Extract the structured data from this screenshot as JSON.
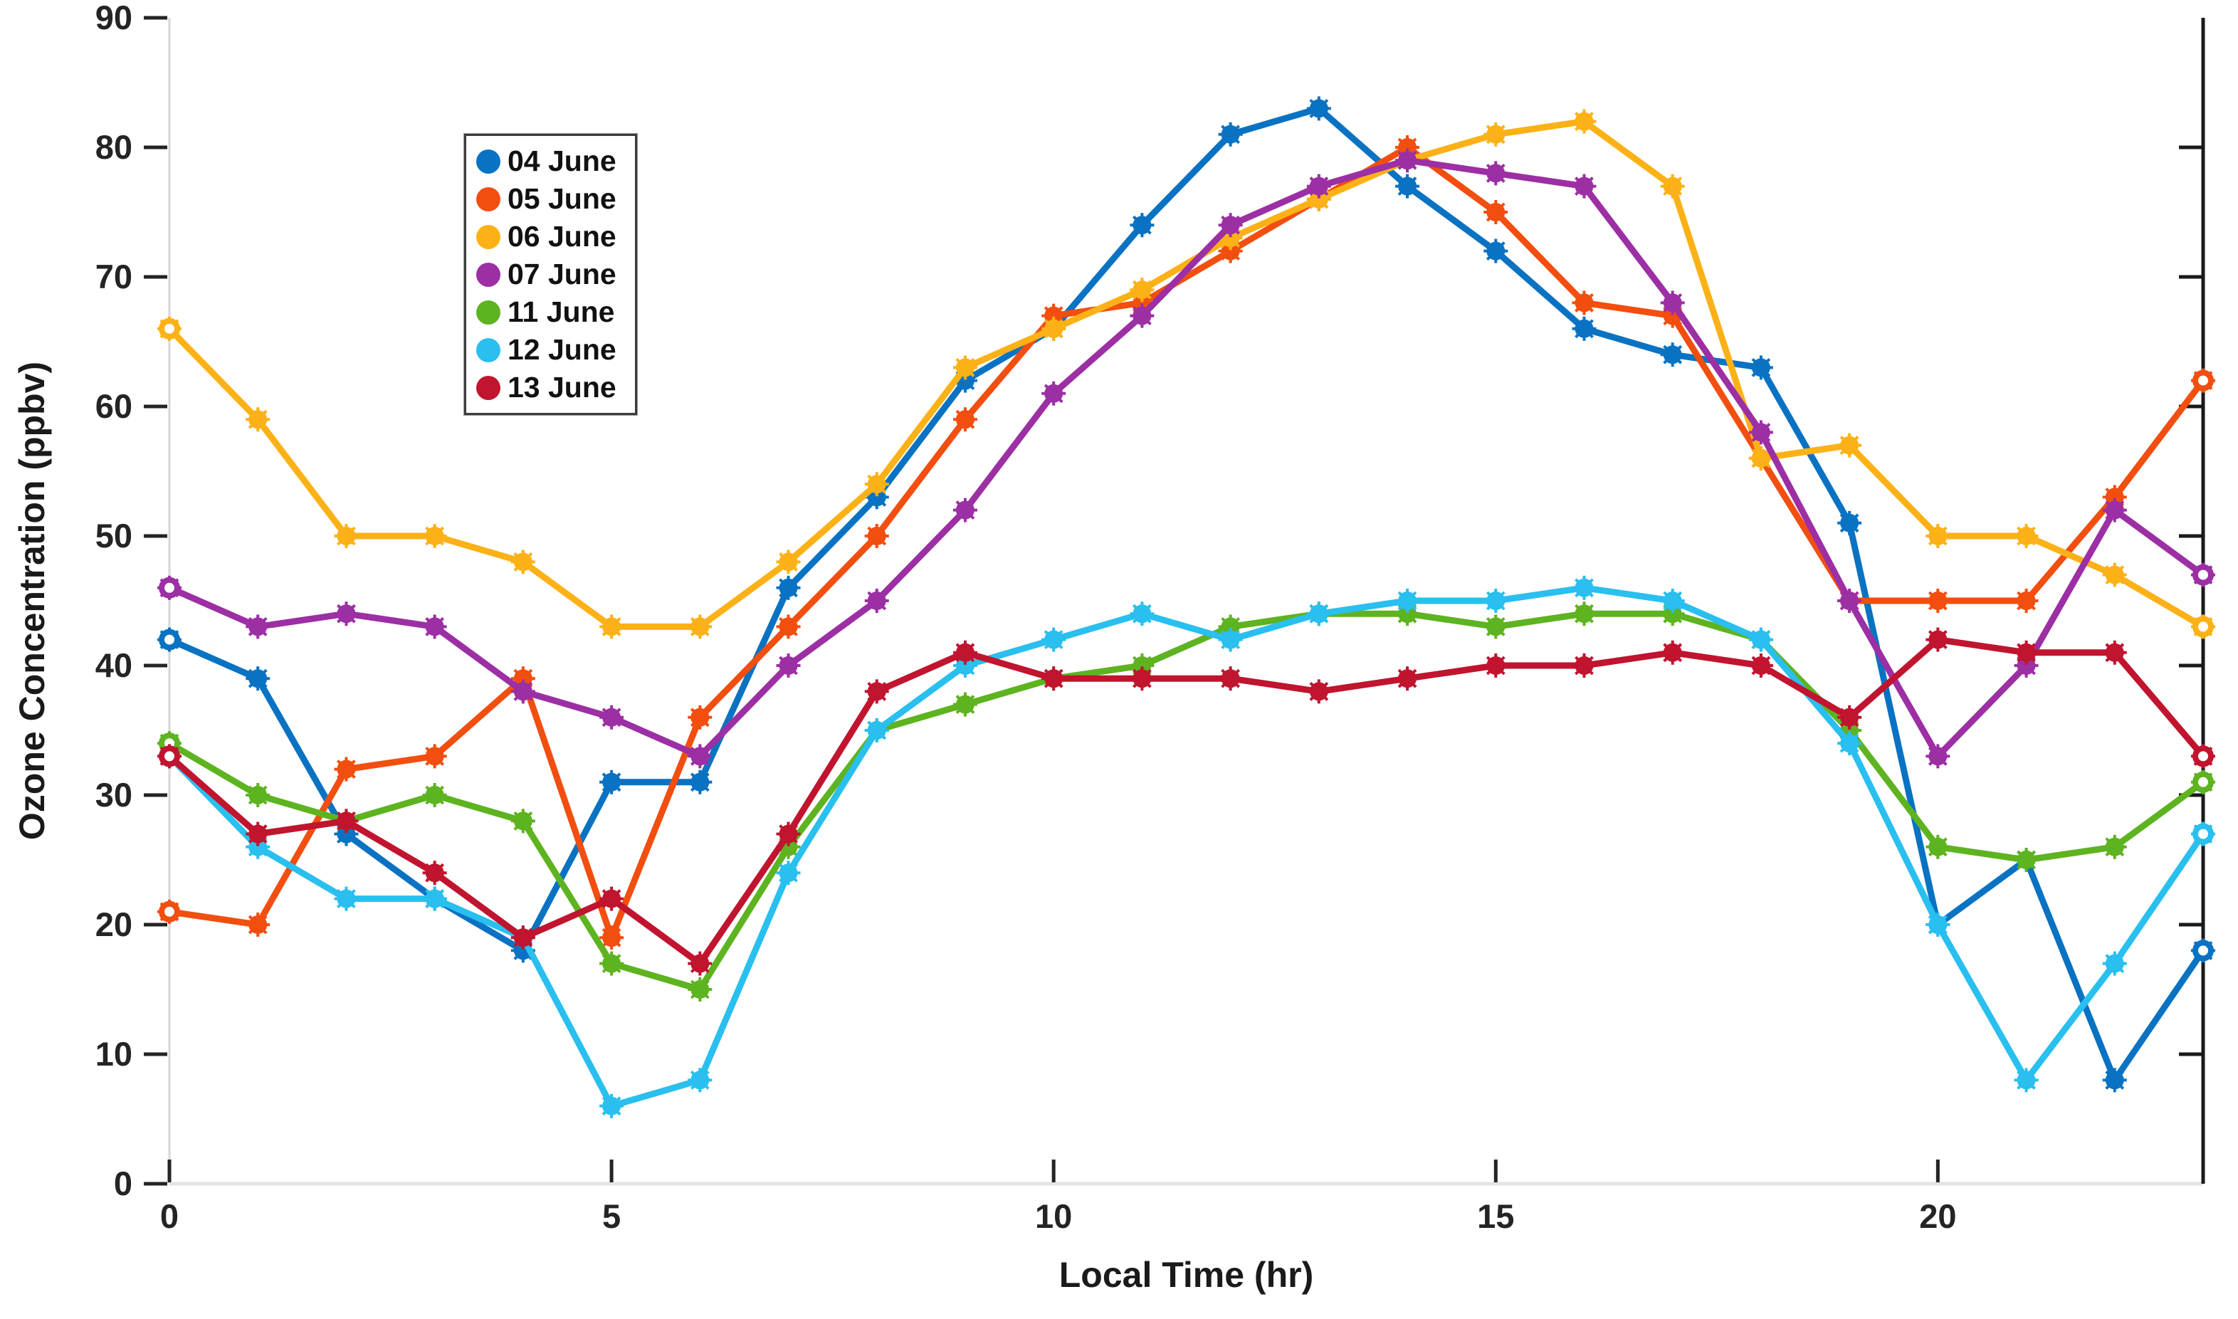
{
  "figure": {
    "xlabel": "Local Time (hr)",
    "ylabel": "Ozone Concentration (ppbv)"
  },
  "chart_data": {
    "type": "line",
    "title": "",
    "xlabel": "Local Time (hr)",
    "ylabel": "Ozone Concentration (ppbv)",
    "xlim": [
      0,
      23
    ],
    "ylim": [
      0,
      90
    ],
    "xticks": [
      0,
      5,
      10,
      15,
      20
    ],
    "yticks": [
      0,
      10,
      20,
      30,
      40,
      50,
      60,
      70,
      80,
      90
    ],
    "grid": false,
    "legend_position": "upper-left-inside",
    "x": [
      0,
      1,
      2,
      3,
      4,
      5,
      6,
      7,
      8,
      9,
      10,
      11,
      12,
      13,
      14,
      15,
      16,
      17,
      18,
      19,
      20,
      21,
      22,
      23
    ],
    "series": [
      {
        "name": "04 June",
        "color": "#0a72c2",
        "values": [
          42,
          39,
          27,
          22,
          18,
          31,
          31,
          46,
          53,
          62,
          66,
          74,
          81,
          83,
          77,
          72,
          66,
          64,
          63,
          51,
          20,
          25,
          8,
          18
        ]
      },
      {
        "name": "05 June",
        "color": "#f24e0f",
        "values": [
          21,
          20,
          32,
          33,
          39,
          19,
          36,
          43,
          50,
          59,
          67,
          68,
          72,
          76,
          80,
          75,
          68,
          67,
          56,
          45,
          45,
          45,
          53,
          62
        ]
      },
      {
        "name": "06 June",
        "color": "#fcb116",
        "values": [
          66,
          59,
          50,
          50,
          48,
          43,
          43,
          48,
          54,
          63,
          66,
          69,
          73,
          76,
          79,
          81,
          82,
          77,
          56,
          57,
          50,
          50,
          47,
          43
        ]
      },
      {
        "name": "07 June",
        "color": "#9c2fa4",
        "values": [
          46,
          43,
          44,
          43,
          38,
          36,
          33,
          40,
          45,
          52,
          61,
          67,
          74,
          77,
          79,
          78,
          77,
          68,
          58,
          45,
          33,
          40,
          52,
          47
        ]
      },
      {
        "name": "11 June",
        "color": "#5eb320",
        "values": [
          34,
          30,
          28,
          30,
          28,
          17,
          15,
          26,
          35,
          37,
          39,
          40,
          43,
          44,
          44,
          43,
          44,
          44,
          42,
          35,
          26,
          25,
          26,
          31
        ]
      },
      {
        "name": "12 June",
        "color": "#29bfef",
        "values": [
          33,
          26,
          22,
          22,
          19,
          6,
          8,
          24,
          35,
          40,
          42,
          44,
          42,
          44,
          45,
          45,
          46,
          45,
          42,
          34,
          20,
          8,
          17,
          27
        ]
      },
      {
        "name": "13 June",
        "color": "#c0142f",
        "values": [
          33,
          27,
          28,
          24,
          19,
          22,
          17,
          27,
          38,
          41,
          39,
          39,
          39,
          38,
          39,
          40,
          40,
          41,
          40,
          36,
          42,
          41,
          41,
          33
        ]
      }
    ],
    "axis_style": {
      "left_axis_color": "#d6d6d6",
      "bottom_axis_color": "#e3e3e3",
      "right_axis_color": "#1a1a1a",
      "tick_color": "#242424"
    }
  }
}
